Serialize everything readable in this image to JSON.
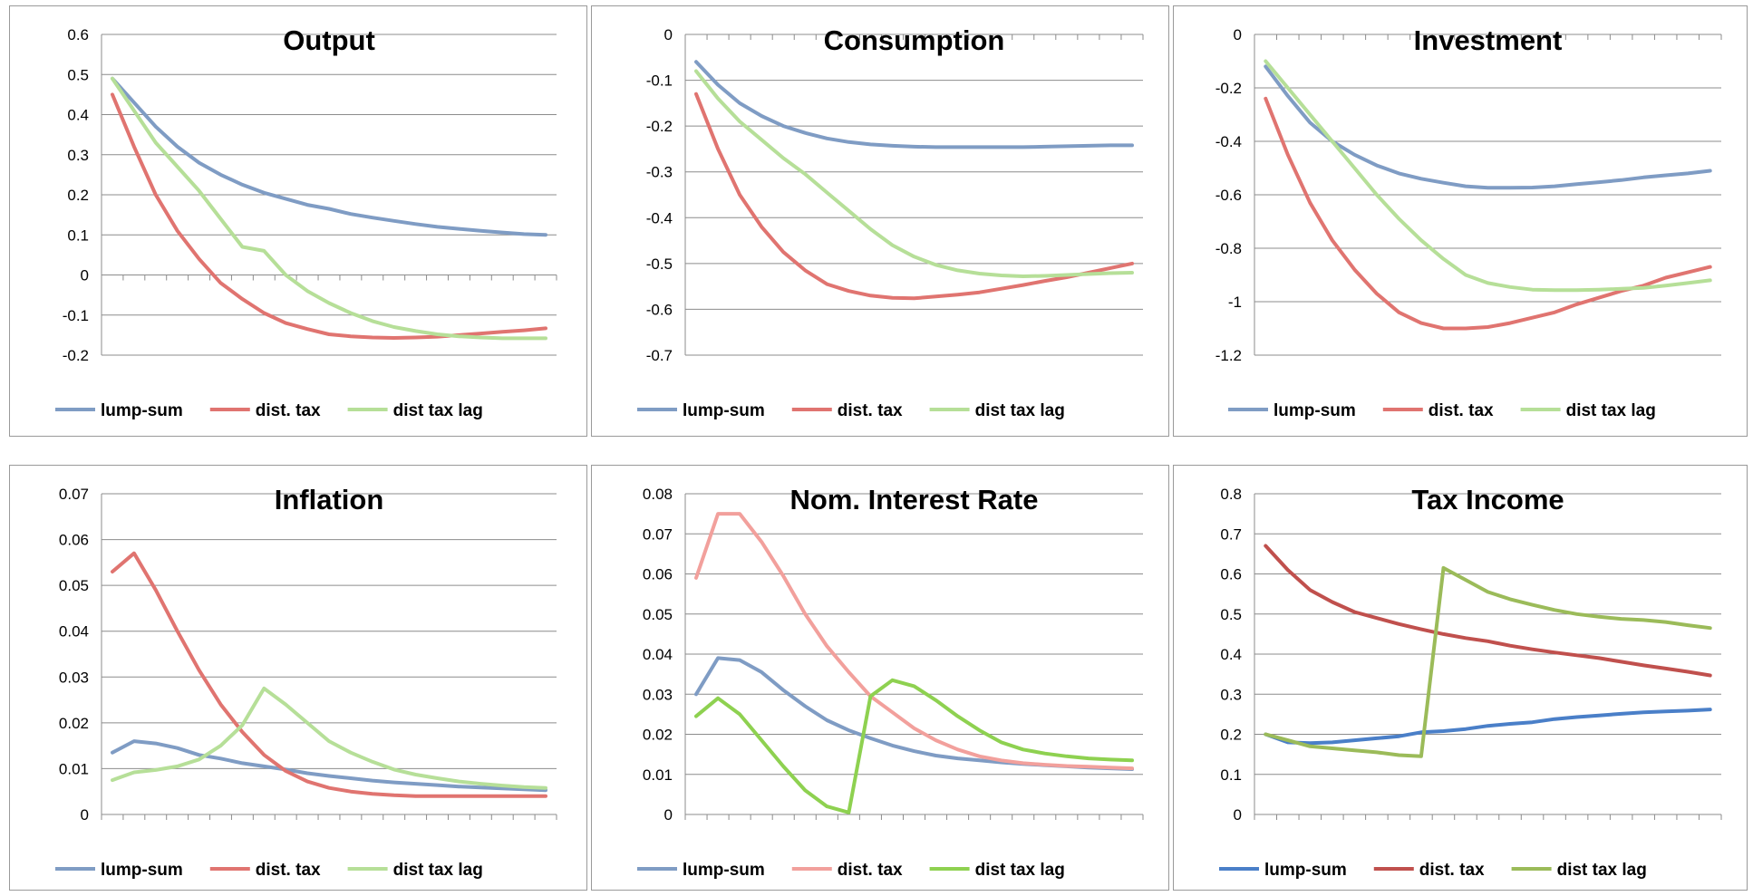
{
  "chart_data": [
    {
      "type": "line",
      "title": "Output",
      "ylim": [
        -0.2,
        0.6
      ],
      "yticks": [
        "0.6",
        "0.5",
        "0.4",
        "0.3",
        "0.2",
        "0.1",
        "0",
        "-0.1",
        "-0.2"
      ],
      "axis_position": "zero",
      "grid": true,
      "legend": "bottom",
      "series": [
        {
          "name": "lump-sum",
          "color": "#7f9cc4",
          "values": [
            0.49,
            0.43,
            0.37,
            0.32,
            0.28,
            0.25,
            0.225,
            0.205,
            0.19,
            0.175,
            0.165,
            0.152,
            0.143,
            0.135,
            0.127,
            0.12,
            0.115,
            0.11,
            0.106,
            0.102,
            0.1
          ]
        },
        {
          "name": "dist. tax",
          "color": "#e07470",
          "values": [
            0.45,
            0.32,
            0.2,
            0.11,
            0.04,
            -0.02,
            -0.06,
            -0.095,
            -0.12,
            -0.135,
            -0.148,
            -0.153,
            -0.156,
            -0.157,
            -0.156,
            -0.154,
            -0.15,
            -0.146,
            -0.142,
            -0.138,
            -0.133
          ]
        },
        {
          "name": "dist tax lag",
          "color": "#b6df98",
          "values": [
            0.49,
            0.41,
            0.33,
            0.27,
            0.21,
            0.14,
            0.07,
            0.06,
            0.0,
            -0.04,
            -0.07,
            -0.095,
            -0.115,
            -0.13,
            -0.14,
            -0.148,
            -0.153,
            -0.156,
            -0.158,
            -0.158,
            -0.158
          ]
        }
      ]
    },
    {
      "type": "line",
      "title": "Consumption",
      "ylim": [
        -0.7,
        0
      ],
      "yticks": [
        "0",
        "-0.1",
        "-0.2",
        "-0.3",
        "-0.4",
        "-0.5",
        "-0.6",
        "-0.7"
      ],
      "axis_position": "top",
      "grid": true,
      "legend": "bottom",
      "series": [
        {
          "name": "lump-sum",
          "color": "#7f9cc4",
          "values": [
            -0.06,
            -0.11,
            -0.15,
            -0.178,
            -0.2,
            -0.215,
            -0.227,
            -0.235,
            -0.24,
            -0.243,
            -0.245,
            -0.246,
            -0.246,
            -0.246,
            -0.246,
            -0.246,
            -0.245,
            -0.244,
            -0.243,
            -0.242,
            -0.242
          ]
        },
        {
          "name": "dist. tax",
          "color": "#e07470",
          "values": [
            -0.13,
            -0.25,
            -0.35,
            -0.42,
            -0.475,
            -0.515,
            -0.545,
            -0.56,
            -0.57,
            -0.575,
            -0.576,
            -0.572,
            -0.568,
            -0.563,
            -0.555,
            -0.547,
            -0.538,
            -0.53,
            -0.52,
            -0.51,
            -0.5
          ]
        },
        {
          "name": "dist tax lag",
          "color": "#b6df98",
          "values": [
            -0.08,
            -0.14,
            -0.19,
            -0.23,
            -0.27,
            -0.305,
            -0.345,
            -0.385,
            -0.425,
            -0.46,
            -0.485,
            -0.503,
            -0.515,
            -0.522,
            -0.526,
            -0.528,
            -0.527,
            -0.525,
            -0.523,
            -0.521,
            -0.52
          ]
        }
      ]
    },
    {
      "type": "line",
      "title": "Investment",
      "ylim": [
        -1.2,
        0
      ],
      "yticks": [
        "0",
        "-0.2",
        "-0.4",
        "-0.6",
        "-0.8",
        "-1",
        "-1.2"
      ],
      "axis_position": "top",
      "grid": true,
      "legend": "bottom",
      "series": [
        {
          "name": "lump-sum",
          "color": "#7f9cc4",
          "values": [
            -0.12,
            -0.23,
            -0.33,
            -0.4,
            -0.45,
            -0.49,
            -0.52,
            -0.54,
            -0.555,
            -0.568,
            -0.574,
            -0.574,
            -0.573,
            -0.568,
            -0.56,
            -0.553,
            -0.545,
            -0.535,
            -0.527,
            -0.52,
            -0.51
          ]
        },
        {
          "name": "dist. tax",
          "color": "#e07470",
          "values": [
            -0.24,
            -0.45,
            -0.63,
            -0.77,
            -0.88,
            -0.97,
            -1.04,
            -1.08,
            -1.1,
            -1.1,
            -1.095,
            -1.08,
            -1.06,
            -1.04,
            -1.01,
            -0.985,
            -0.96,
            -0.94,
            -0.91,
            -0.89,
            -0.87
          ]
        },
        {
          "name": "dist tax lag",
          "color": "#b6df98",
          "values": [
            -0.1,
            -0.2,
            -0.3,
            -0.4,
            -0.5,
            -0.6,
            -0.69,
            -0.77,
            -0.84,
            -0.9,
            -0.93,
            -0.945,
            -0.955,
            -0.957,
            -0.957,
            -0.955,
            -0.952,
            -0.948,
            -0.94,
            -0.93,
            -0.92
          ]
        }
      ]
    },
    {
      "type": "line",
      "title": "Inflation",
      "ylim": [
        0,
        0.07
      ],
      "yticks": [
        "0.07",
        "0.06",
        "0.05",
        "0.04",
        "0.03",
        "0.02",
        "0.01",
        "0"
      ],
      "axis_position": "bottom",
      "grid": true,
      "legend": "bottom",
      "series": [
        {
          "name": "lump-sum",
          "color": "#7f9cc4",
          "values": [
            0.0135,
            0.016,
            0.0155,
            0.0145,
            0.013,
            0.0122,
            0.0112,
            0.0105,
            0.0098,
            0.009,
            0.0084,
            0.0079,
            0.0074,
            0.007,
            0.0067,
            0.0064,
            0.0061,
            0.0059,
            0.0057,
            0.0055,
            0.0053
          ]
        },
        {
          "name": "dist. tax",
          "color": "#e07470",
          "values": [
            0.053,
            0.057,
            0.049,
            0.04,
            0.0315,
            0.024,
            0.018,
            0.013,
            0.0095,
            0.0072,
            0.0058,
            0.005,
            0.0045,
            0.0042,
            0.004,
            0.004,
            0.004,
            0.004,
            0.004,
            0.004,
            0.004
          ]
        },
        {
          "name": "dist tax lag",
          "color": "#b6df98",
          "values": [
            0.0075,
            0.0092,
            0.0097,
            0.0105,
            0.012,
            0.015,
            0.0195,
            0.0275,
            0.024,
            0.02,
            0.016,
            0.0135,
            0.0115,
            0.0098,
            0.0087,
            0.0079,
            0.0072,
            0.0067,
            0.0063,
            0.006,
            0.0058
          ]
        }
      ]
    },
    {
      "type": "line",
      "title": "Nom. Interest Rate",
      "ylim": [
        0,
        0.08
      ],
      "yticks": [
        "0.08",
        "0.07",
        "0.06",
        "0.05",
        "0.04",
        "0.03",
        "0.02",
        "0.01",
        "0"
      ],
      "axis_position": "bottom",
      "grid": true,
      "legend": "bottom",
      "series": [
        {
          "name": "lump-sum",
          "color": "#7f9cc4",
          "values": [
            0.03,
            0.039,
            0.0385,
            0.0355,
            0.031,
            0.027,
            0.0235,
            0.021,
            0.019,
            0.0172,
            0.0158,
            0.0147,
            0.014,
            0.0135,
            0.013,
            0.0126,
            0.0123,
            0.012,
            0.0117,
            0.0115,
            0.0113
          ]
        },
        {
          "name": "dist. tax",
          "color": "#f2a09c",
          "values": [
            0.059,
            0.075,
            0.075,
            0.068,
            0.0595,
            0.05,
            0.042,
            0.0355,
            0.0295,
            0.0255,
            0.0215,
            0.0185,
            0.0162,
            0.0145,
            0.0135,
            0.0128,
            0.0124,
            0.0121,
            0.0119,
            0.0117,
            0.0115
          ]
        },
        {
          "name": "dist tax lag",
          "color": "#8ed150",
          "values": [
            0.0245,
            0.029,
            0.025,
            0.0185,
            0.012,
            0.006,
            0.002,
            0.0005,
            0.0295,
            0.0335,
            0.032,
            0.0285,
            0.0245,
            0.021,
            0.018,
            0.0162,
            0.0152,
            0.0145,
            0.014,
            0.0137,
            0.0135
          ]
        }
      ]
    },
    {
      "type": "line",
      "title": "Tax Income",
      "ylim": [
        0,
        0.8
      ],
      "yticks": [
        "0.8",
        "0.7",
        "0.6",
        "0.5",
        "0.4",
        "0.3",
        "0.2",
        "0.1",
        "0"
      ],
      "axis_position": "bottom",
      "grid": true,
      "legend": "bottom",
      "series": [
        {
          "name": "lump-sum",
          "color": "#4a7fc8",
          "values": [
            0.2,
            0.18,
            0.178,
            0.18,
            0.185,
            0.19,
            0.195,
            0.205,
            0.208,
            0.213,
            0.221,
            0.226,
            0.23,
            0.238,
            0.243,
            0.247,
            0.251,
            0.255,
            0.257,
            0.259,
            0.262
          ]
        },
        {
          "name": "dist. tax",
          "color": "#c0504d",
          "values": [
            0.67,
            0.61,
            0.56,
            0.53,
            0.505,
            0.49,
            0.475,
            0.462,
            0.45,
            0.44,
            0.432,
            0.421,
            0.412,
            0.404,
            0.397,
            0.39,
            0.381,
            0.372,
            0.364,
            0.356,
            0.347
          ]
        },
        {
          "name": "dist tax lag",
          "color": "#9bbb59",
          "values": [
            0.2,
            0.185,
            0.17,
            0.165,
            0.16,
            0.155,
            0.148,
            0.145,
            0.615,
            0.585,
            0.555,
            0.537,
            0.523,
            0.51,
            0.5,
            0.493,
            0.488,
            0.485,
            0.48,
            0.472,
            0.465
          ]
        }
      ]
    }
  ]
}
